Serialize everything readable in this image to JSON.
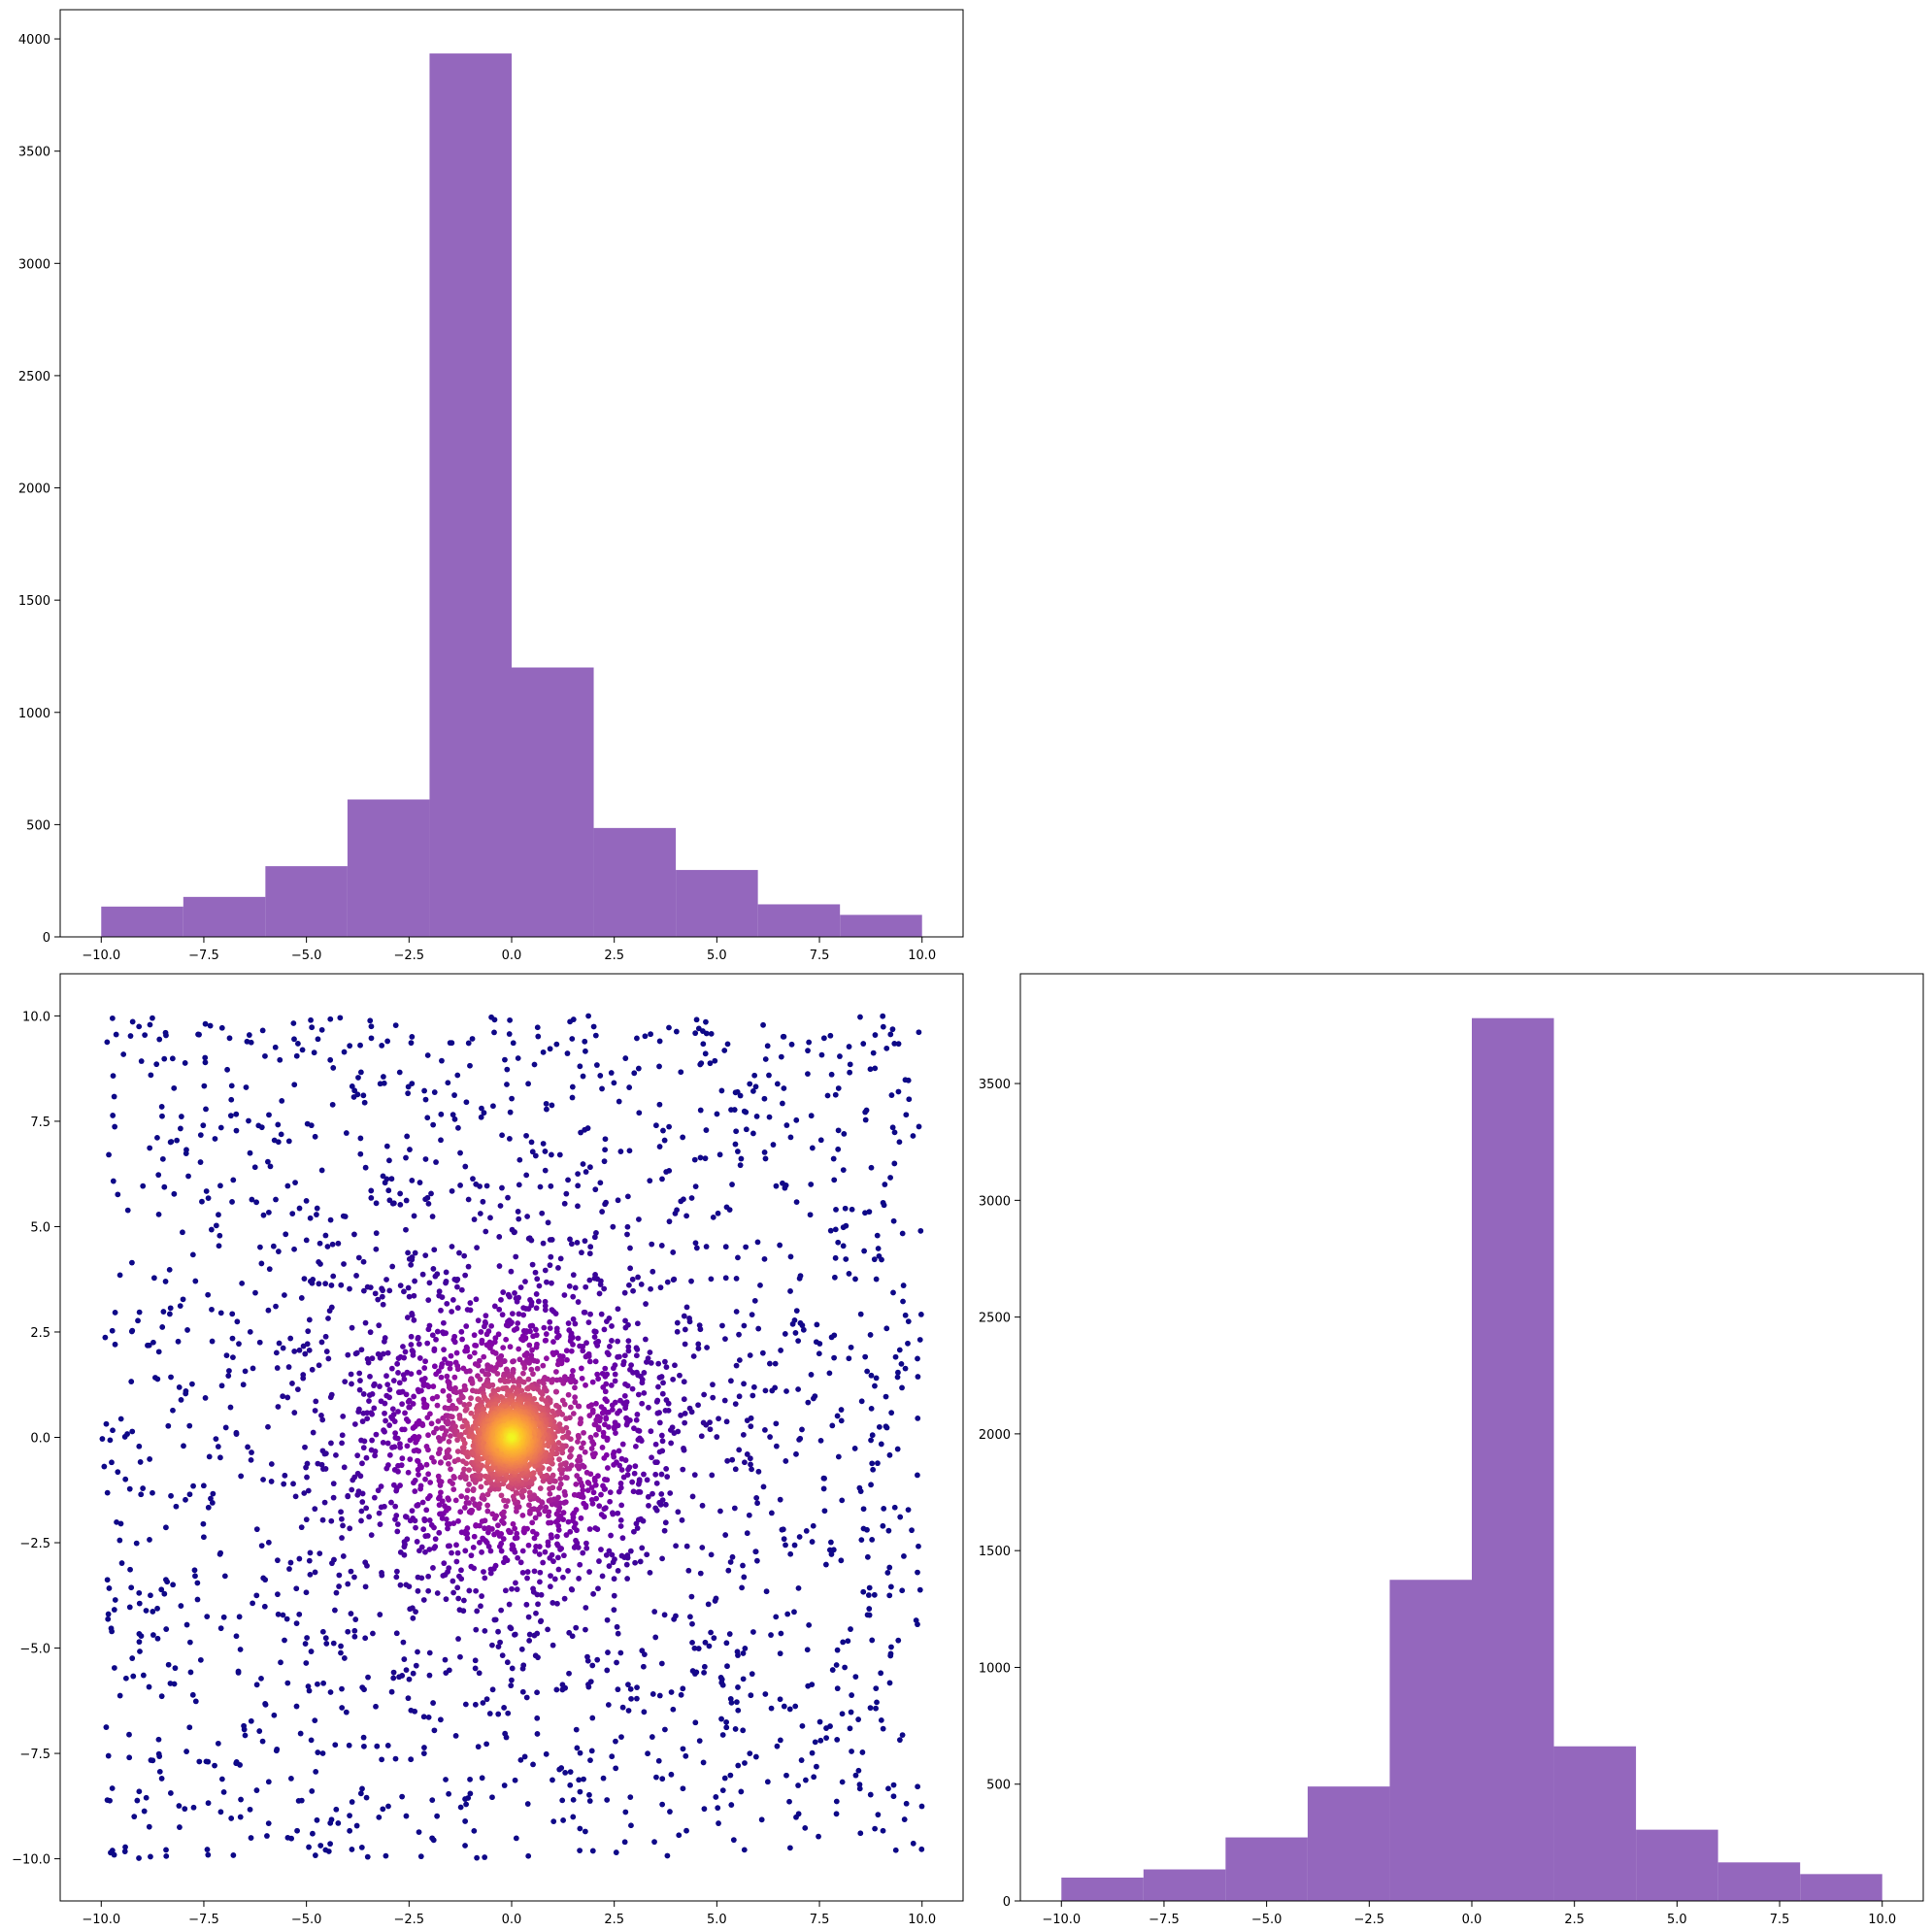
{
  "chart_data": [
    {
      "id": "top-left-histogram",
      "type": "bar",
      "title": "",
      "xlabel": "",
      "ylabel": "",
      "bin_edges": [
        -10,
        -8,
        -6,
        -4,
        -2,
        0,
        2,
        4,
        6,
        8,
        10
      ],
      "values": [
        135,
        178,
        315,
        612,
        3935,
        1200,
        485,
        298,
        145,
        98
      ],
      "xlim": [
        -11,
        11
      ],
      "ylim": [
        0,
        4130
      ],
      "xticks": [
        -10,
        -7.5,
        -5,
        -2.5,
        0,
        2.5,
        5,
        7.5,
        10
      ],
      "xtick_labels": [
        "−10.0",
        "−7.5",
        "−5.0",
        "−2.5",
        "0.0",
        "2.5",
        "5.0",
        "7.5",
        "10.0"
      ],
      "yticks": [
        0,
        500,
        1000,
        1500,
        2000,
        2500,
        3000,
        3500,
        4000
      ],
      "ytick_labels": [
        "0",
        "500",
        "1000",
        "1500",
        "2000",
        "2500",
        "3000",
        "3500",
        "4000"
      ],
      "color": "#9467bd",
      "grid": false
    },
    {
      "id": "bottom-left-scatter",
      "type": "scatter",
      "title": "",
      "xlabel": "",
      "ylabel": "",
      "n_points": 5000,
      "center": [
        0,
        0
      ],
      "x_range": [
        -10,
        10
      ],
      "y_range": [
        -10,
        10
      ],
      "xlim": [
        -11,
        11
      ],
      "ylim": [
        -11,
        11
      ],
      "xticks": [
        -10,
        -7.5,
        -5,
        -2.5,
        0,
        2.5,
        5,
        7.5,
        10
      ],
      "xtick_labels": [
        "−10.0",
        "−7.5",
        "−5.0",
        "−2.5",
        "0.0",
        "2.5",
        "5.0",
        "7.5",
        "10.0"
      ],
      "yticks": [
        -10,
        -7.5,
        -5,
        -2.5,
        0,
        2.5,
        5,
        7.5,
        10
      ],
      "ytick_labels": [
        "−10.0",
        "−7.5",
        "−5.0",
        "−2.5",
        "0.0",
        "2.5",
        "5.0",
        "7.5",
        "10.0"
      ],
      "colormap": "plasma",
      "color_low": "#3a049a",
      "color_high": "#f0f921",
      "grid": false
    },
    {
      "id": "bottom-right-histogram",
      "type": "bar",
      "title": "",
      "xlabel": "",
      "ylabel": "",
      "bin_edges": [
        -10,
        -8,
        -6,
        -4,
        -2,
        0,
        2,
        4,
        6,
        8,
        10
      ],
      "values": [
        100,
        135,
        272,
        490,
        1375,
        3780,
        662,
        305,
        165,
        115
      ],
      "xlim": [
        -11,
        11
      ],
      "ylim": [
        0,
        3970
      ],
      "xticks": [
        -10,
        -7.5,
        -5,
        -2.5,
        0,
        2.5,
        5,
        7.5,
        10
      ],
      "xtick_labels": [
        "−10.0",
        "−7.5",
        "−5.0",
        "−2.5",
        "0.0",
        "2.5",
        "5.0",
        "7.5",
        "10.0"
      ],
      "yticks": [
        0,
        500,
        1000,
        1500,
        2000,
        2500,
        3000,
        3500
      ],
      "ytick_labels": [
        "0",
        "500",
        "1000",
        "1500",
        "2000",
        "2500",
        "3000",
        "3500"
      ],
      "color": "#9467bd",
      "grid": false
    }
  ]
}
